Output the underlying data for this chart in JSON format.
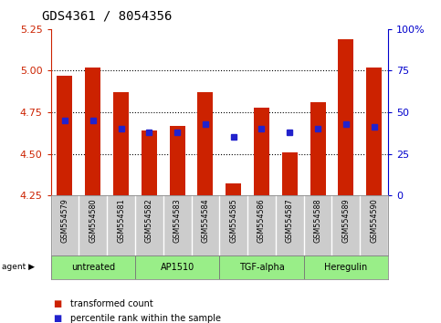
{
  "title": "GDS4361 / 8054356",
  "samples": [
    "GSM554579",
    "GSM554580",
    "GSM554581",
    "GSM554582",
    "GSM554583",
    "GSM554584",
    "GSM554585",
    "GSM554586",
    "GSM554587",
    "GSM554588",
    "GSM554589",
    "GSM554590"
  ],
  "red_values": [
    4.97,
    5.02,
    4.87,
    4.64,
    4.67,
    4.87,
    4.32,
    4.78,
    4.51,
    4.81,
    5.19,
    5.02
  ],
  "blue_values": [
    4.7,
    4.7,
    4.65,
    4.63,
    4.63,
    4.68,
    4.6,
    4.65,
    4.63,
    4.65,
    4.68,
    4.66
  ],
  "ymin": 4.25,
  "ymax": 5.25,
  "yticks_left": [
    4.25,
    4.5,
    4.75,
    5.0,
    5.25
  ],
  "yticks_right_vals": [
    0,
    25,
    50,
    75,
    100
  ],
  "yticks_right_labels": [
    "0",
    "25",
    "50",
    "75",
    "100%"
  ],
  "bar_color": "#cc2200",
  "dot_color": "#2222cc",
  "agent_groups": [
    {
      "label": "untreated",
      "start": 0,
      "end": 3
    },
    {
      "label": "AP1510",
      "start": 3,
      "end": 6
    },
    {
      "label": "TGF-alpha",
      "start": 6,
      "end": 9
    },
    {
      "label": "Heregulin",
      "start": 9,
      "end": 12
    }
  ],
  "agent_color": "#99ee88",
  "bg_color": "#ffffff",
  "label_bg_color": "#cccccc",
  "left_axis_color": "#cc2200",
  "right_axis_color": "#0000cc",
  "grid_yticks": [
    4.5,
    4.75,
    5.0
  ],
  "legend_items": [
    {
      "label": "transformed count",
      "color": "#cc2200"
    },
    {
      "label": "percentile rank within the sample",
      "color": "#2222cc"
    }
  ],
  "bar_width": 0.55
}
